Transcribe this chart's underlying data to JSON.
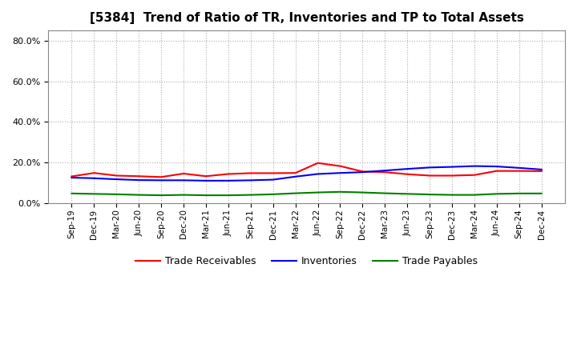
{
  "title": "[5384]  Trend of Ratio of TR, Inventories and TP to Total Assets",
  "labels": [
    "Sep-19",
    "Dec-19",
    "Mar-20",
    "Jun-20",
    "Sep-20",
    "Dec-20",
    "Mar-21",
    "Jun-21",
    "Sep-21",
    "Dec-21",
    "Mar-22",
    "Jun-22",
    "Sep-22",
    "Dec-22",
    "Mar-23",
    "Jun-23",
    "Sep-23",
    "Dec-23",
    "Mar-24",
    "Jun-24",
    "Sep-24",
    "Dec-24"
  ],
  "trade_receivables": [
    0.131,
    0.148,
    0.135,
    0.132,
    0.128,
    0.145,
    0.132,
    0.143,
    0.147,
    0.147,
    0.148,
    0.197,
    0.182,
    0.155,
    0.152,
    0.142,
    0.135,
    0.135,
    0.138,
    0.158,
    0.158,
    0.157
  ],
  "inventories": [
    0.125,
    0.122,
    0.117,
    0.113,
    0.112,
    0.112,
    0.11,
    0.11,
    0.112,
    0.115,
    0.13,
    0.143,
    0.148,
    0.152,
    0.16,
    0.168,
    0.175,
    0.178,
    0.182,
    0.18,
    0.173,
    0.165
  ],
  "trade_payables": [
    0.047,
    0.045,
    0.043,
    0.04,
    0.038,
    0.04,
    0.038,
    0.038,
    0.04,
    0.043,
    0.048,
    0.052,
    0.055,
    0.052,
    0.048,
    0.045,
    0.042,
    0.04,
    0.04,
    0.045,
    0.047,
    0.047
  ],
  "colors": {
    "trade_receivables": "#FF0000",
    "inventories": "#0000FF",
    "trade_payables": "#008000"
  },
  "ylim": [
    0.0,
    0.85
  ],
  "yticks": [
    0.0,
    0.2,
    0.4,
    0.6,
    0.8
  ],
  "background_color": "#FFFFFF",
  "grid_color": "#999999",
  "line_width": 1.5
}
